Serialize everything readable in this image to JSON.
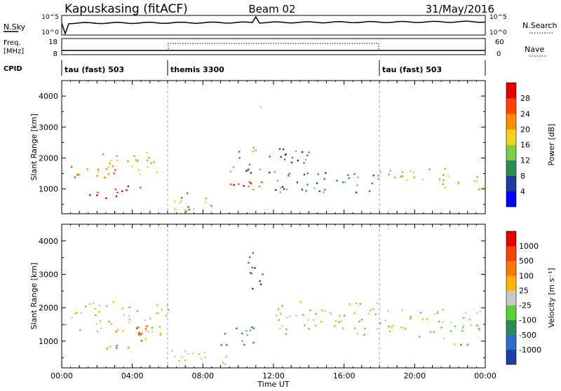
{
  "header": {
    "station": "Kapuskasing (fitACF)",
    "beam": "Beam 02",
    "date": "31/May/2016"
  },
  "panels": {
    "nsky": {
      "label": "N.Sky",
      "right_label": "N.Search",
      "ticks_left": [
        "10^5",
        "10^0"
      ],
      "ticks_right": [
        "10^5",
        "10^0"
      ]
    },
    "freq": {
      "label_line1": "Freq.",
      "label_line2": "[MHz]",
      "right_label": "Nave",
      "ticks_left": [
        "18",
        "8"
      ],
      "ticks_right": [
        "60",
        "0"
      ]
    },
    "cpid": {
      "label": "CPID",
      "modes": [
        {
          "name": "tau (fast) 503",
          "start_h": 0
        },
        {
          "name": "themis 3300",
          "start_h": 6
        },
        {
          "name": "tau (fast) 503",
          "start_h": 18
        }
      ]
    }
  },
  "chart_data": [
    {
      "type": "heatmap",
      "title": "",
      "xlabel": "",
      "ylabel": "Slant Range [km]",
      "xlim": [
        0,
        24
      ],
      "ylim": [
        200,
        4500
      ],
      "x_tick_labels": [
        "00:00",
        "04:00",
        "08:00",
        "12:00",
        "16:00",
        "20:00",
        "00:00"
      ],
      "y_ticks": [
        1000,
        2000,
        3000,
        4000
      ],
      "colorbar": {
        "label": "Power [dB]",
        "ticks": [
          "4",
          "8",
          "12",
          "16",
          "20",
          "24",
          "28"
        ],
        "colors": [
          "#0000ff",
          "#1e3ca0",
          "#2e8b57",
          "#7ccd4c",
          "#f2d41c",
          "#ff8c00",
          "#ff4500",
          "#e60000"
        ]
      },
      "echo_regions": [
        {
          "t": [
            0.0,
            3.0
          ],
          "range": [
            1300,
            1800
          ],
          "level": 5
        },
        {
          "t": [
            1.0,
            3.5
          ],
          "range": [
            700,
            1000
          ],
          "level": 7
        },
        {
          "t": [
            3.0,
            4.5
          ],
          "range": [
            900,
            1300
          ],
          "level": 7
        },
        {
          "t": [
            2.0,
            5.5
          ],
          "range": [
            1400,
            2200
          ],
          "level": 4
        },
        {
          "t": [
            6.0,
            9.0
          ],
          "range": [
            300,
            900
          ],
          "level": 3
        },
        {
          "t": [
            8.5,
            11.5
          ],
          "range": [
            1000,
            1400
          ],
          "level": 6
        },
        {
          "t": [
            9.5,
            14.0
          ],
          "range": [
            1500,
            2400
          ],
          "level": 2
        },
        {
          "t": [
            11.0,
            11.3
          ],
          "range": [
            3500,
            3800
          ],
          "level": 3
        },
        {
          "t": [
            12.0,
            18.0
          ],
          "range": [
            900,
            1600
          ],
          "level": 2
        },
        {
          "t": [
            18.0,
            22.0
          ],
          "range": [
            1200,
            1700
          ],
          "level": 4
        },
        {
          "t": [
            21.5,
            24.0
          ],
          "range": [
            1000,
            1500
          ],
          "level": 5
        }
      ]
    },
    {
      "type": "heatmap",
      "title": "",
      "xlabel": "Time UT",
      "ylabel": "Slant Range [km]",
      "xlim": [
        0,
        24
      ],
      "ylim": [
        200,
        4500
      ],
      "x_tick_labels": [
        "00:00",
        "04:00",
        "08:00",
        "12:00",
        "16:00",
        "20:00",
        "00:00"
      ],
      "y_ticks": [
        1000,
        2000,
        3000,
        4000
      ],
      "colorbar": {
        "label": "Velocity [m s⁻¹]",
        "ticks": [
          "1000",
          "500",
          "100",
          "25",
          "-25",
          "-100",
          "-500",
          "-1000"
        ],
        "colors": [
          "#1e3caa",
          "#2e6ec8",
          "#2e8b57",
          "#5ccd3c",
          "#c8c8c8",
          "#ffb400",
          "#ff7800",
          "#f04600",
          "#e60000"
        ]
      },
      "echo_regions": [
        {
          "t": [
            0.0,
            6.0
          ],
          "range": [
            1200,
            2200
          ],
          "level": 4
        },
        {
          "t": [
            2.5,
            5.0
          ],
          "range": [
            800,
            1600
          ],
          "level": 6
        },
        {
          "t": [
            6.0,
            9.5
          ],
          "range": [
            300,
            800
          ],
          "level": 5
        },
        {
          "t": [
            9.0,
            11.5
          ],
          "range": [
            900,
            1500
          ],
          "level": 2
        },
        {
          "t": [
            10.5,
            11.5
          ],
          "range": [
            2500,
            3800
          ],
          "level": 1
        },
        {
          "t": [
            12.0,
            18.0
          ],
          "range": [
            1200,
            2200
          ],
          "level": 4
        },
        {
          "t": [
            18.0,
            24.0
          ],
          "range": [
            1100,
            2000
          ],
          "level": 4
        },
        {
          "t": [
            22.0,
            23.2
          ],
          "range": [
            800,
            1100
          ],
          "level": 6
        }
      ]
    }
  ]
}
